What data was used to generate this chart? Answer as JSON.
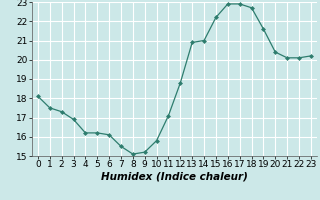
{
  "x": [
    0,
    1,
    2,
    3,
    4,
    5,
    6,
    7,
    8,
    9,
    10,
    11,
    12,
    13,
    14,
    15,
    16,
    17,
    18,
    19,
    20,
    21,
    22,
    23
  ],
  "y": [
    18.1,
    17.5,
    17.3,
    16.9,
    16.2,
    16.2,
    16.1,
    15.5,
    15.1,
    15.2,
    15.8,
    17.1,
    18.8,
    20.9,
    21.0,
    22.2,
    22.9,
    22.9,
    22.7,
    21.6,
    20.4,
    20.1,
    20.1,
    20.2
  ],
  "line_color": "#2e7d6e",
  "marker": "D",
  "markersize": 2.0,
  "linewidth": 0.9,
  "xlabel": "Humidex (Indice chaleur)",
  "xlim": [
    -0.5,
    23.5
  ],
  "ylim": [
    15,
    23
  ],
  "yticks": [
    15,
    16,
    17,
    18,
    19,
    20,
    21,
    22,
    23
  ],
  "xticks": [
    0,
    1,
    2,
    3,
    4,
    5,
    6,
    7,
    8,
    9,
    10,
    11,
    12,
    13,
    14,
    15,
    16,
    17,
    18,
    19,
    20,
    21,
    22,
    23
  ],
  "bg_color": "#cce8e8",
  "grid_color": "#ffffff",
  "tick_fontsize": 6.5,
  "xlabel_fontsize": 7.5
}
